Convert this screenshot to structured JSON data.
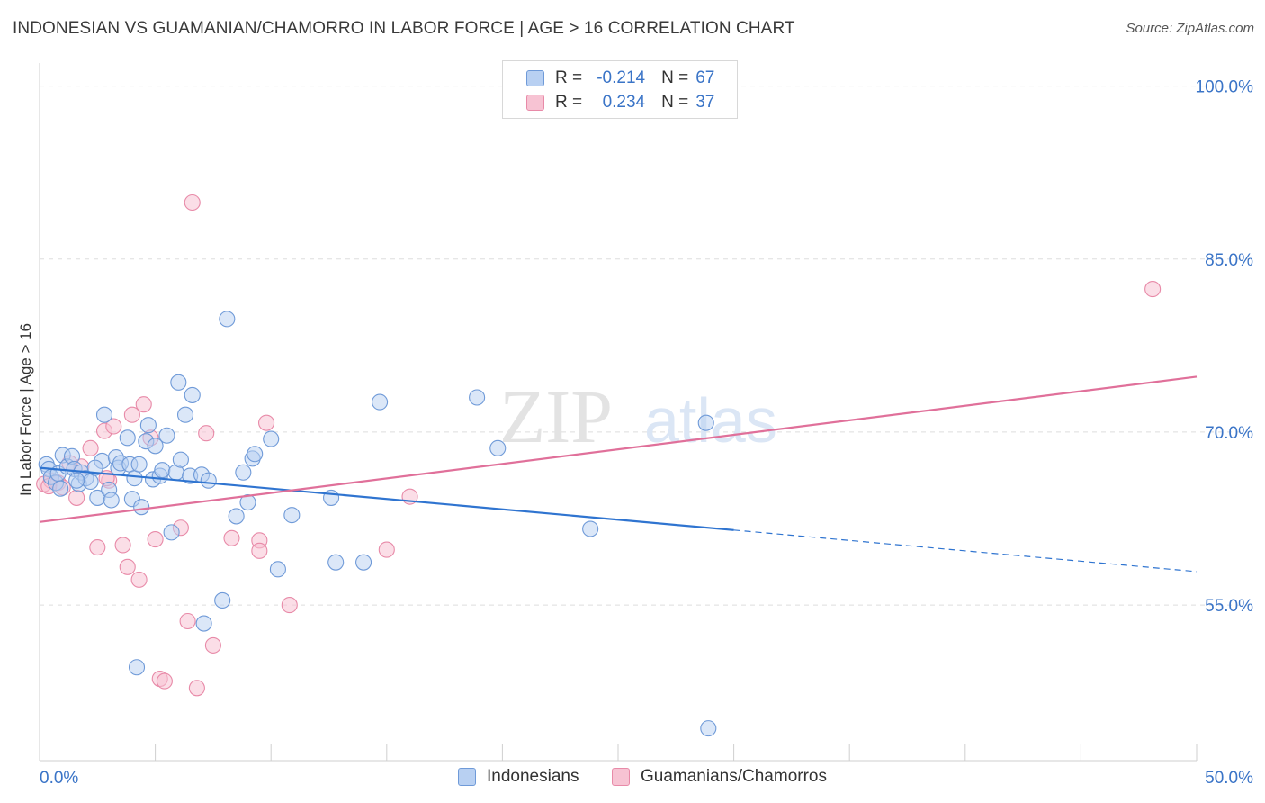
{
  "title": "INDONESIAN VS GUAMANIAN/CHAMORRO IN LABOR FORCE | AGE > 16 CORRELATION CHART",
  "source": "Source: ZipAtlas.com",
  "watermark": {
    "zip": "ZIP",
    "atlas": "atlas"
  },
  "legend": {
    "rows": [
      {
        "r_label": "R =",
        "r_value": "-0.214",
        "n_label": "N =",
        "n_value": "67"
      },
      {
        "r_label": "R =",
        "r_value": "0.234",
        "n_label": "N =",
        "n_value": "37"
      }
    ]
  },
  "bottom_legend": [
    "Indonesians",
    "Guamanians/Chamorros"
  ],
  "colors": {
    "blue_fill": "#b8d0f2",
    "blue_stroke": "#6f9ad8",
    "blue_line": "#2f74d0",
    "pink_fill": "#f7c3d3",
    "pink_stroke": "#e88aa8",
    "pink_line": "#e0709a",
    "axis_label": "#3a74c7",
    "grid": "#dddddd"
  },
  "chart_data": {
    "type": "scatter",
    "title": "INDONESIAN VS GUAMANIAN/CHAMORRO IN LABOR FORCE | AGE > 16 CORRELATION CHART",
    "xlabel": "",
    "ylabel": "In Labor Force | Age > 16",
    "xlim": [
      0,
      50
    ],
    "ylim": [
      41.5,
      102
    ],
    "x_tick_labels": [
      "0.0%",
      "50.0%"
    ],
    "y_ticks": [
      55,
      70,
      85,
      100
    ],
    "y_tick_labels": [
      "55.0%",
      "70.0%",
      "85.0%",
      "100.0%"
    ],
    "grid": "horizontal dashed",
    "series": [
      {
        "name": "Indonesians",
        "color": "#6f9ad8",
        "r": -0.214,
        "n": 67,
        "trend": {
          "x0": 0.0,
          "y0": 66.9,
          "x1": 30.0,
          "y1": 61.5,
          "dashed_to_x": 50.0,
          "dashed_to_y": 57.9
        },
        "points": [
          [
            0.3,
            67.2
          ],
          [
            0.4,
            66.8
          ],
          [
            0.5,
            66.1
          ],
          [
            0.7,
            65.6
          ],
          [
            0.8,
            66.4
          ],
          [
            0.9,
            65.1
          ],
          [
            1.0,
            68.0
          ],
          [
            1.2,
            67.0
          ],
          [
            1.4,
            67.9
          ],
          [
            1.5,
            66.8
          ],
          [
            1.7,
            65.5
          ],
          [
            1.8,
            66.5
          ],
          [
            2.0,
            66.0
          ],
          [
            2.2,
            65.7
          ],
          [
            2.5,
            64.3
          ],
          [
            2.7,
            67.5
          ],
          [
            2.8,
            71.5
          ],
          [
            3.0,
            65.0
          ],
          [
            3.1,
            64.1
          ],
          [
            3.3,
            67.8
          ],
          [
            3.4,
            66.9
          ],
          [
            3.5,
            67.3
          ],
          [
            3.8,
            69.5
          ],
          [
            3.9,
            67.2
          ],
          [
            4.0,
            64.2
          ],
          [
            4.1,
            66.0
          ],
          [
            4.3,
            67.2
          ],
          [
            4.4,
            63.5
          ],
          [
            4.6,
            69.2
          ],
          [
            4.7,
            70.6
          ],
          [
            4.9,
            65.9
          ],
          [
            5.0,
            68.8
          ],
          [
            5.2,
            66.2
          ],
          [
            5.3,
            66.7
          ],
          [
            5.5,
            69.7
          ],
          [
            5.7,
            61.3
          ],
          [
            5.9,
            66.5
          ],
          [
            6.0,
            74.3
          ],
          [
            6.1,
            67.6
          ],
          [
            6.3,
            71.5
          ],
          [
            6.5,
            66.2
          ],
          [
            6.6,
            73.2
          ],
          [
            7.0,
            66.3
          ],
          [
            7.1,
            53.4
          ],
          [
            7.3,
            65.8
          ],
          [
            7.9,
            55.4
          ],
          [
            8.1,
            79.8
          ],
          [
            8.5,
            62.7
          ],
          [
            8.8,
            66.5
          ],
          [
            9.0,
            63.9
          ],
          [
            9.2,
            67.7
          ],
          [
            9.3,
            68.1
          ],
          [
            10.0,
            69.4
          ],
          [
            10.3,
            58.1
          ],
          [
            10.9,
            62.8
          ],
          [
            12.6,
            64.3
          ],
          [
            12.8,
            58.7
          ],
          [
            14.0,
            58.7
          ],
          [
            14.7,
            72.6
          ],
          [
            18.9,
            73.0
          ],
          [
            19.8,
            68.6
          ],
          [
            23.8,
            61.6
          ],
          [
            28.8,
            70.8
          ],
          [
            28.9,
            44.3
          ],
          [
            4.2,
            49.6
          ],
          [
            2.4,
            66.9
          ],
          [
            1.6,
            65.8
          ]
        ]
      },
      {
        "name": "Guamanians/Chamorros",
        "color": "#e88aa8",
        "r": 0.234,
        "n": 37,
        "trend": {
          "x0": 0.0,
          "y0": 62.2,
          "x1": 50.0,
          "y1": 74.8
        },
        "points": [
          [
            0.2,
            65.5
          ],
          [
            0.5,
            65.8
          ],
          [
            0.8,
            65.6
          ],
          [
            1.0,
            65.2
          ],
          [
            1.6,
            64.3
          ],
          [
            1.8,
            67.0
          ],
          [
            2.2,
            68.6
          ],
          [
            2.5,
            60.0
          ],
          [
            2.8,
            70.1
          ],
          [
            3.0,
            65.8
          ],
          [
            3.2,
            70.5
          ],
          [
            3.6,
            60.2
          ],
          [
            3.8,
            58.3
          ],
          [
            4.0,
            71.5
          ],
          [
            4.3,
            57.2
          ],
          [
            4.5,
            72.4
          ],
          [
            4.8,
            69.5
          ],
          [
            5.0,
            60.7
          ],
          [
            5.2,
            48.6
          ],
          [
            5.4,
            48.4
          ],
          [
            6.1,
            61.7
          ],
          [
            6.4,
            53.6
          ],
          [
            6.6,
            89.9
          ],
          [
            6.8,
            47.8
          ],
          [
            7.2,
            69.9
          ],
          [
            7.5,
            51.5
          ],
          [
            8.3,
            60.8
          ],
          [
            9.5,
            60.6
          ],
          [
            9.5,
            59.7
          ],
          [
            9.8,
            70.8
          ],
          [
            10.8,
            55.0
          ],
          [
            15.0,
            59.8
          ],
          [
            16.0,
            64.4
          ],
          [
            48.1,
            82.4
          ],
          [
            0.4,
            65.3
          ],
          [
            1.3,
            67.3
          ],
          [
            2.9,
            66.0
          ]
        ]
      }
    ]
  }
}
